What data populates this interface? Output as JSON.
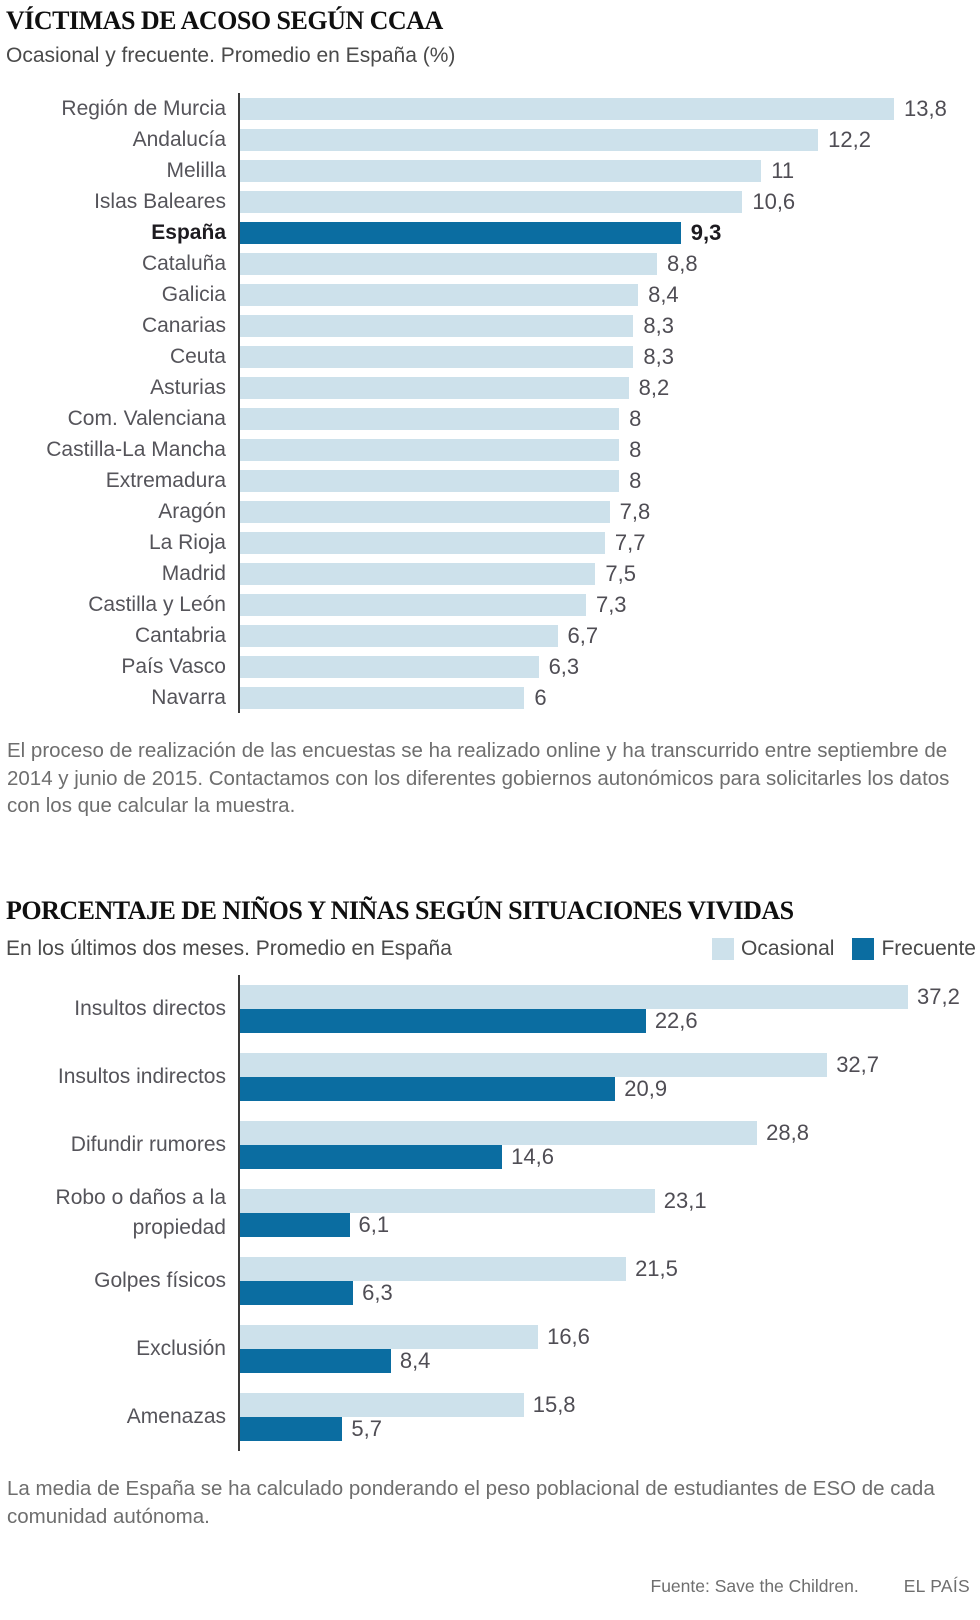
{
  "colors": {
    "ocasional_light_blue": "#cde1eb",
    "frecuente_dark_blue": "#0b6da1",
    "axis_line": "#3a3a3a"
  },
  "section1": {
    "title": "VÍCTIMAS DE ACOSO SEGÚN CCAA",
    "subtitle": "Ocasional y frecuente. Promedio en España (%)",
    "note": "El proceso de realización de las encuestas se ha realizado online y ha transcurrido entre septiembre de 2014 y junio de 2015. Contactamos con los diferentes gobiernos autonómicos para solicitarles los datos con los que calcular la muestra."
  },
  "section2": {
    "title": "PORCENTAJE DE NIÑOS Y NIÑAS SEGÚN SITUACIONES VIVIDAS",
    "subtitle": "En los últimos dos meses. Promedio en España",
    "legend": [
      {
        "label": "Ocasional",
        "color": "#cde1eb"
      },
      {
        "label": "Frecuente",
        "color": "#0b6da1"
      }
    ],
    "note": "La media de España se ha calculado ponderando el peso poblacional de estudiantes de ESO de cada comunidad autónoma."
  },
  "footer": {
    "source": "Fuente: Save the Children.",
    "brand": "EL PAÍS"
  },
  "chart_data": [
    {
      "type": "bar",
      "orientation": "horizontal",
      "title": "VÍCTIMAS DE ACOSO SEGÚN CCAA",
      "subtitle": "Ocasional y frecuente. Promedio en España (%)",
      "unit": "%",
      "xlim": [
        0,
        13.8
      ],
      "grid": false,
      "highlight_category": "España",
      "bar_color": "#cde1eb",
      "highlight_color": "#0b6da1",
      "categories": [
        "Región de Murcia",
        "Andalucía",
        "Melilla",
        "Islas Baleares",
        "España",
        "Cataluña",
        "Galicia",
        "Canarias",
        "Ceuta",
        "Asturias",
        "Com. Valenciana",
        "Castilla-La Mancha",
        "Extremadura",
        "Aragón",
        "La Rioja",
        "Madrid",
        "Castilla y León",
        "Cantabria",
        "País Vasco",
        "Navarra"
      ],
      "values": [
        13.8,
        12.2,
        11,
        10.6,
        9.3,
        8.8,
        8.4,
        8.3,
        8.3,
        8.2,
        8,
        8,
        8,
        7.8,
        7.7,
        7.5,
        7.3,
        6.7,
        6.3,
        6
      ],
      "display_values": [
        "13,8",
        "12,2",
        "11",
        "10,6",
        "9,3",
        "8,8",
        "8,4",
        "8,3",
        "8,3",
        "8,2",
        "8",
        "8",
        "8",
        "7,8",
        "7,7",
        "7,5",
        "7,3",
        "6,7",
        "6,3",
        "6"
      ]
    },
    {
      "type": "bar",
      "orientation": "horizontal",
      "grouped": true,
      "title": "PORCENTAJE DE NIÑOS Y NIÑAS SEGÚN SITUACIONES VIVIDAS",
      "subtitle": "En los últimos dos meses. Promedio en España",
      "unit": "%",
      "xlim": [
        0,
        37.2
      ],
      "grid": false,
      "legend_position": "top-right",
      "categories": [
        "Insultos directos",
        "Insultos indirectos",
        "Difundir rumores",
        "Robo o daños a la propiedad",
        "Golpes físicos",
        "Exclusión",
        "Amenazas"
      ],
      "series": [
        {
          "name": "Ocasional",
          "color": "#cde1eb",
          "values": [
            37.2,
            32.7,
            28.8,
            23.1,
            21.5,
            16.6,
            15.8
          ],
          "display_values": [
            "37,2",
            "32,7",
            "28,8",
            "23,1",
            "21,5",
            "16,6",
            "15,8"
          ]
        },
        {
          "name": "Frecuente",
          "color": "#0b6da1",
          "values": [
            22.6,
            20.9,
            14.6,
            6.1,
            6.3,
            8.4,
            5.7
          ],
          "display_values": [
            "22,6",
            "20,9",
            "14,6",
            "6,1",
            "6,3",
            "8,4",
            "5,7"
          ]
        }
      ]
    }
  ]
}
